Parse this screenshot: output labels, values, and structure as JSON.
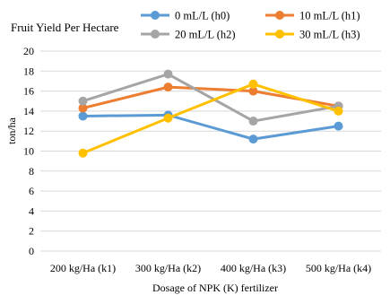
{
  "chart_data": {
    "type": "line",
    "title": "Fruit Yield Per Hectare",
    "xlabel": "Dosage of NPK (K) fertilizer",
    "ylabel": "ton/ha",
    "categories": [
      "200 kg/Ha (k1)",
      "300 kg/Ha (k2)",
      "400 kg/Ha (k3)",
      "500 kg/Ha (k4)"
    ],
    "ylim": [
      0,
      20
    ],
    "yticks": [
      0,
      2,
      4,
      6,
      8,
      10,
      12,
      14,
      16,
      18,
      20
    ],
    "grid": "horizontal",
    "legend_position": "top",
    "series": [
      {
        "name": "0 mL/L (h0)",
        "color": "#5b9bd5",
        "values": [
          13.5,
          13.6,
          11.2,
          12.5
        ]
      },
      {
        "name": "10 mL/L (h1)",
        "color": "#ed7d31",
        "values": [
          14.3,
          16.4,
          16.0,
          14.5
        ]
      },
      {
        "name": "20 mL/L (h2)",
        "color": "#a5a5a5",
        "values": [
          15.0,
          17.7,
          13.0,
          14.5
        ]
      },
      {
        "name": "30 mL/L (h3)",
        "color": "#ffc000",
        "values": [
          9.8,
          13.3,
          16.7,
          14.0
        ]
      }
    ]
  }
}
